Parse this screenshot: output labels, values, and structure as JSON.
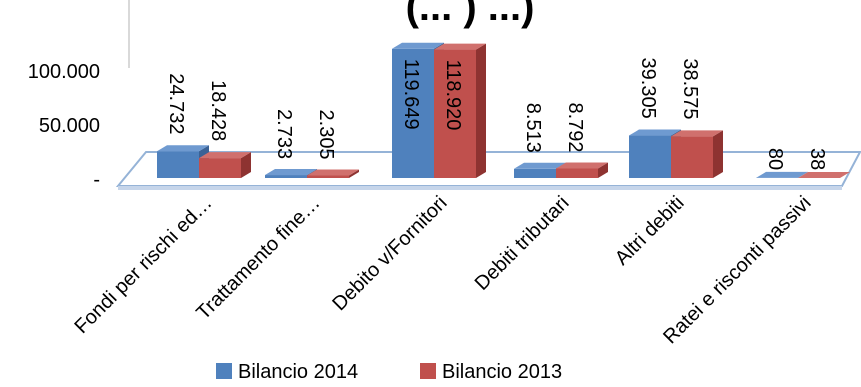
{
  "chart_data": {
    "type": "bar",
    "title": "(... ) ...)",
    "categories": [
      "Fondi per rischi ed…",
      "Trattamento fine…",
      "Debito v/Fornitori",
      "Debiti tributari",
      "Altri debiti",
      "Ratei e risconti passivi"
    ],
    "series": [
      {
        "name": "Bilancio 2014",
        "color": "#4f81bd",
        "side_color": "#3a6296",
        "top_color": "#6f9ad0",
        "values": [
          24732,
          2733,
          119649,
          8513,
          39305,
          80
        ],
        "labels": [
          "24.732",
          "2.733",
          "119.649",
          "8.513",
          "39.305",
          "80"
        ]
      },
      {
        "name": "Bilancio 2013",
        "color": "#c0504d",
        "side_color": "#8e3331",
        "top_color": "#d0706d",
        "values": [
          18428,
          2305,
          118920,
          8792,
          38575,
          38
        ],
        "labels": [
          "18.428",
          "2.305",
          "118.920",
          "8.792",
          "38.575",
          "38"
        ]
      }
    ],
    "y_ticks": [
      {
        "value": 0,
        "label": "-"
      },
      {
        "value": 50000,
        "label": "50.000"
      },
      {
        "value": 100000,
        "label": "100.000"
      }
    ],
    "ylim": [
      0,
      150000
    ],
    "grid": false,
    "legend_position": "bottom"
  }
}
